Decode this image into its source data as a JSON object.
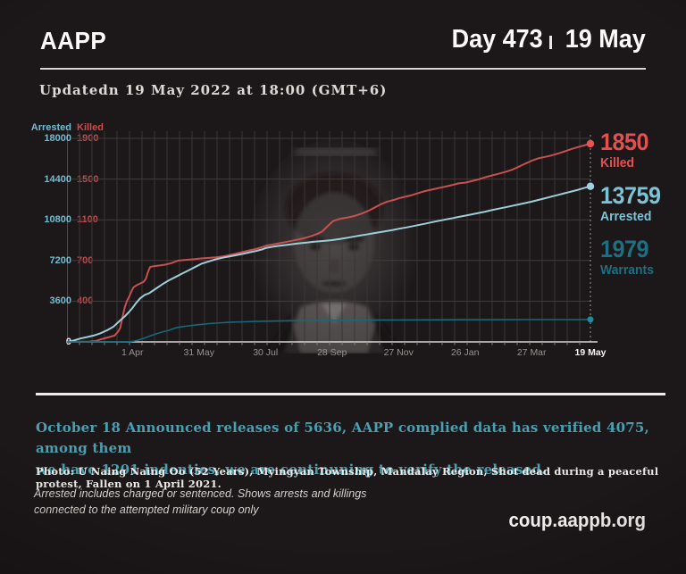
{
  "header": {
    "brand": "AAPP",
    "day_counter": "Day 473",
    "date": "19 May"
  },
  "updated_line": "Updatedn 19 May 2022 at 18:00 (GMT+6)",
  "chart_data": {
    "type": "line",
    "title": "",
    "x_axis": {
      "range_days": [
        0,
        472
      ],
      "ticks": [
        {
          "day": 59,
          "label": "1 Apr"
        },
        {
          "day": 119,
          "label": "31 May"
        },
        {
          "day": 179,
          "label": "30 Jul"
        },
        {
          "day": 239,
          "label": "28 Sep"
        },
        {
          "day": 299,
          "label": "27 Nov"
        },
        {
          "day": 359,
          "label": "26 Jan"
        },
        {
          "day": 419,
          "label": "27 Mar"
        },
        {
          "day": 472,
          "label": "19 May",
          "bold": true
        }
      ]
    },
    "axes": {
      "arrested": {
        "label": "Arrested",
        "max": 18000,
        "ticks": [
          18000,
          14400,
          10800,
          7200,
          3600
        ],
        "zero_label": "0",
        "color": "#74bdd0"
      },
      "killed": {
        "label": "Killed",
        "max": 1900,
        "ticks": [
          1900,
          1500,
          1100,
          700,
          400
        ],
        "color": "#c64a4a"
      }
    },
    "grid": {
      "v_color": "#3a3435",
      "h_color": "#453b3b",
      "v_spacing_px": 14
    },
    "legend_position": "right",
    "series": [
      {
        "name": "Killed",
        "color": "#c75150",
        "dot_color": "#e4554f",
        "axis_max": 1900,
        "final_value": 1850,
        "points": [
          [
            0,
            0
          ],
          [
            10,
            1
          ],
          [
            20,
            3
          ],
          [
            26,
            8
          ],
          [
            32,
            28
          ],
          [
            38,
            45
          ],
          [
            43,
            60
          ],
          [
            46,
            95
          ],
          [
            48,
            130
          ],
          [
            50,
            230
          ],
          [
            52,
            320
          ],
          [
            54,
            380
          ],
          [
            56,
            420
          ],
          [
            58,
            470
          ],
          [
            60,
            510
          ],
          [
            63,
            530
          ],
          [
            66,
            545
          ],
          [
            69,
            560
          ],
          [
            71,
            585
          ],
          [
            73,
            650
          ],
          [
            75,
            700
          ],
          [
            78,
            706
          ],
          [
            82,
            712
          ],
          [
            88,
            720
          ],
          [
            94,
            735
          ],
          [
            100,
            758
          ],
          [
            106,
            764
          ],
          [
            112,
            770
          ],
          [
            118,
            776
          ],
          [
            121,
            779
          ],
          [
            128,
            784
          ],
          [
            134,
            789
          ],
          [
            140,
            797
          ],
          [
            146,
            809
          ],
          [
            152,
            823
          ],
          [
            158,
            839
          ],
          [
            164,
            853
          ],
          [
            170,
            867
          ],
          [
            176,
            885
          ],
          [
            179,
            897
          ],
          [
            185,
            908
          ],
          [
            191,
            920
          ],
          [
            197,
            932
          ],
          [
            203,
            944
          ],
          [
            209,
            957
          ],
          [
            215,
            972
          ],
          [
            221,
            990
          ],
          [
            226,
            1010
          ],
          [
            230,
            1030
          ],
          [
            234,
            1070
          ],
          [
            238,
            1110
          ],
          [
            240,
            1128
          ],
          [
            244,
            1142
          ],
          [
            248,
            1153
          ],
          [
            253,
            1162
          ],
          [
            259,
            1175
          ],
          [
            265,
            1195
          ],
          [
            271,
            1220
          ],
          [
            277,
            1252
          ],
          [
            283,
            1285
          ],
          [
            289,
            1310
          ],
          [
            295,
            1326
          ],
          [
            299,
            1340
          ],
          [
            305,
            1355
          ],
          [
            311,
            1370
          ],
          [
            317,
            1390
          ],
          [
            323,
            1408
          ],
          [
            329,
            1422
          ],
          [
            335,
            1436
          ],
          [
            341,
            1449
          ],
          [
            347,
            1463
          ],
          [
            353,
            1480
          ],
          [
            359,
            1487
          ],
          [
            365,
            1501
          ],
          [
            371,
            1517
          ],
          [
            377,
            1537
          ],
          [
            383,
            1553
          ],
          [
            389,
            1569
          ],
          [
            395,
            1586
          ],
          [
            401,
            1606
          ],
          [
            407,
            1633
          ],
          [
            413,
            1663
          ],
          [
            419,
            1691
          ],
          [
            425,
            1713
          ],
          [
            431,
            1727
          ],
          [
            437,
            1741
          ],
          [
            443,
            1759
          ],
          [
            449,
            1779
          ],
          [
            455,
            1801
          ],
          [
            461,
            1819
          ],
          [
            466,
            1833
          ],
          [
            472,
            1850
          ]
        ]
      },
      {
        "name": "Arrested",
        "color": "#9fcdd8",
        "dot_color": "#9fd2de",
        "axis_max": 18000,
        "final_value": 13759,
        "points": [
          [
            0,
            0
          ],
          [
            6,
            120
          ],
          [
            12,
            300
          ],
          [
            18,
            430
          ],
          [
            24,
            560
          ],
          [
            30,
            760
          ],
          [
            36,
            1020
          ],
          [
            42,
            1350
          ],
          [
            48,
            1900
          ],
          [
            52,
            2250
          ],
          [
            56,
            2650
          ],
          [
            59,
            3000
          ],
          [
            62,
            3400
          ],
          [
            66,
            3850
          ],
          [
            70,
            4150
          ],
          [
            74,
            4300
          ],
          [
            80,
            4700
          ],
          [
            86,
            5100
          ],
          [
            92,
            5450
          ],
          [
            98,
            5750
          ],
          [
            104,
            6050
          ],
          [
            110,
            6350
          ],
          [
            116,
            6650
          ],
          [
            121,
            6900
          ],
          [
            128,
            7120
          ],
          [
            134,
            7300
          ],
          [
            140,
            7440
          ],
          [
            146,
            7550
          ],
          [
            152,
            7660
          ],
          [
            158,
            7780
          ],
          [
            164,
            7900
          ],
          [
            170,
            8030
          ],
          [
            176,
            8180
          ],
          [
            179,
            8300
          ],
          [
            186,
            8420
          ],
          [
            192,
            8500
          ],
          [
            198,
            8570
          ],
          [
            204,
            8650
          ],
          [
            210,
            8720
          ],
          [
            216,
            8790
          ],
          [
            222,
            8850
          ],
          [
            228,
            8900
          ],
          [
            234,
            8950
          ],
          [
            239,
            9000
          ],
          [
            246,
            9100
          ],
          [
            252,
            9200
          ],
          [
            258,
            9300
          ],
          [
            264,
            9400
          ],
          [
            270,
            9500
          ],
          [
            276,
            9600
          ],
          [
            282,
            9700
          ],
          [
            288,
            9800
          ],
          [
            294,
            9900
          ],
          [
            299,
            10000
          ],
          [
            306,
            10120
          ],
          [
            312,
            10240
          ],
          [
            318,
            10360
          ],
          [
            324,
            10480
          ],
          [
            330,
            10600
          ],
          [
            336,
            10720
          ],
          [
            342,
            10840
          ],
          [
            348,
            10950
          ],
          [
            353,
            11050
          ],
          [
            359,
            11160
          ],
          [
            365,
            11280
          ],
          [
            371,
            11400
          ],
          [
            377,
            11520
          ],
          [
            383,
            11650
          ],
          [
            389,
            11780
          ],
          [
            395,
            11900
          ],
          [
            401,
            12020
          ],
          [
            407,
            12150
          ],
          [
            413,
            12280
          ],
          [
            419,
            12400
          ],
          [
            425,
            12550
          ],
          [
            431,
            12700
          ],
          [
            437,
            12850
          ],
          [
            443,
            13000
          ],
          [
            449,
            13150
          ],
          [
            455,
            13300
          ],
          [
            461,
            13450
          ],
          [
            466,
            13600
          ],
          [
            472,
            13759
          ]
        ]
      },
      {
        "name": "Warrants",
        "color": "#15697b",
        "dot_color": "#1f8ba0",
        "axis_max": 18000,
        "final_value": 1979,
        "width": 1.6,
        "dot_r": 3.5,
        "points": [
          [
            0,
            0
          ],
          [
            40,
            5
          ],
          [
            50,
            10
          ],
          [
            57,
            20
          ],
          [
            60,
            60
          ],
          [
            64,
            150
          ],
          [
            68,
            280
          ],
          [
            72,
            420
          ],
          [
            76,
            560
          ],
          [
            80,
            700
          ],
          [
            86,
            880
          ],
          [
            92,
            1030
          ],
          [
            98,
            1250
          ],
          [
            104,
            1350
          ],
          [
            110,
            1420
          ],
          [
            116,
            1490
          ],
          [
            121,
            1550
          ],
          [
            128,
            1620
          ],
          [
            134,
            1660
          ],
          [
            140,
            1700
          ],
          [
            150,
            1750
          ],
          [
            160,
            1780
          ],
          [
            170,
            1810
          ],
          [
            180,
            1830
          ],
          [
            195,
            1860
          ],
          [
            210,
            1880
          ],
          [
            225,
            1895
          ],
          [
            240,
            1908
          ],
          [
            270,
            1928
          ],
          [
            300,
            1942
          ],
          [
            330,
            1953
          ],
          [
            360,
            1962
          ],
          [
            390,
            1969
          ],
          [
            420,
            1974
          ],
          [
            450,
            1977
          ],
          [
            472,
            1979
          ]
        ]
      }
    ]
  },
  "callouts": [
    {
      "value": "1850",
      "label": "Killed",
      "color": "#e4504f"
    },
    {
      "value": "13759",
      "label": "Arrested",
      "color": "#7dc3d6"
    },
    {
      "value": "1979",
      "label": "Warrants",
      "color": "#1f6f82"
    }
  ],
  "footer": {
    "release_note_lines": [
      "October 18 Announced releases of 5636, AAPP complied data has verified 4075, among them",
      "we have 1201 indenties, we are continuning to verify the released."
    ],
    "photo_credit": "Photo: U Naing Naing Oo (52 Years), Myingyan Township, Mandalay Region, Shot dead during a peaceful protest, Fallen on  1 April 2021.",
    "disclaimer_lines": [
      "Arrested includes charged or sentenced. Shows arrests and killings",
      "connected to the attempted military coup only"
    ],
    "site": "coup.aappb.org"
  }
}
